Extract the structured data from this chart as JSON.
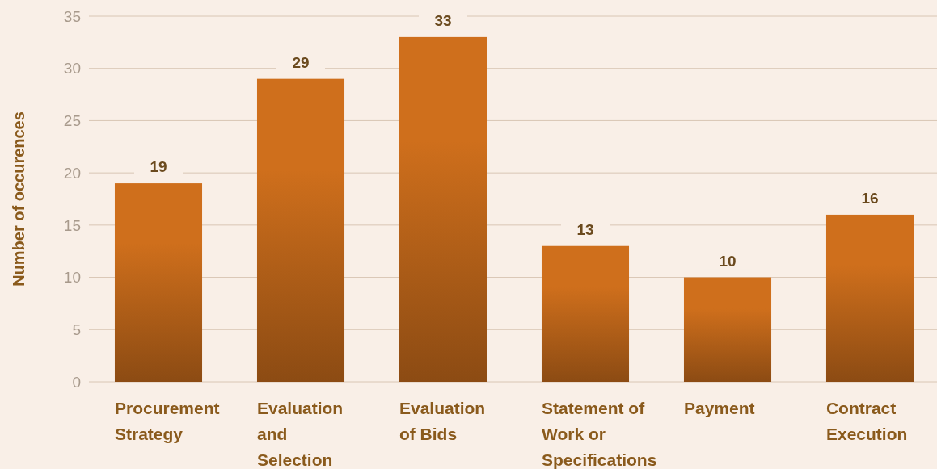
{
  "chart_data": {
    "type": "bar",
    "ylabel": "Number of occurences",
    "categories": [
      "Procurement Strategy",
      "Evaluation and Selection Plan",
      "Evaluation of Bids",
      "Statement of Work or Specifications",
      "Payment",
      "Contract Execution"
    ],
    "values": [
      19,
      29,
      33,
      13,
      10,
      16
    ],
    "color": "#cf6f1c",
    "ylim": [
      0,
      35
    ],
    "yticks": [
      0,
      5,
      10,
      15,
      20,
      25,
      30,
      35
    ],
    "grid": "y",
    "data_labels": true
  }
}
